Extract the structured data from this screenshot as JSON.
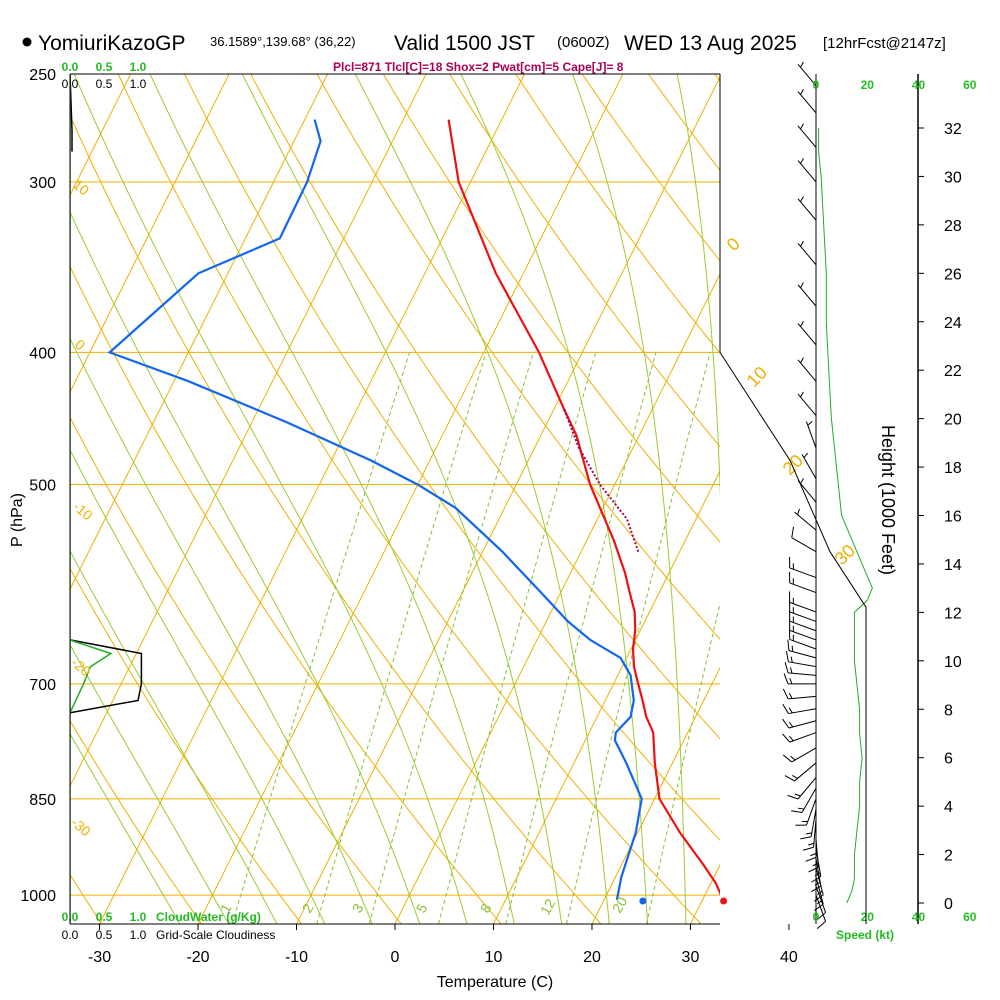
{
  "header": {
    "station": "YomiuriKazoGP",
    "coords": "36.1589°,139.68° (36,22)",
    "valid_label": "Valid 1500 JST",
    "utc": "(0600Z)",
    "date": "WED 13 Aug 2025",
    "forecast": "[12hrFcst@2147z]"
  },
  "stats_line": "Plcl=871 Tlcl[C]=18 Shox=2 Pwat[cm]=5 Cape[J]= 8",
  "axes": {
    "x_label": "Temperature (C)",
    "y_label": "P (hPa)",
    "right_label": "Height (1000 Feet)",
    "speed_label": "Speed (kt)",
    "cloudwater_label": "CloudWater (g/Kg)",
    "cloudiness_label": "Grid-Scale Cloudiness"
  },
  "colors": {
    "isotherm": "#f0b000",
    "dry_adiabat": "#f0b000",
    "moist_adiabat": "#99cc33",
    "mixing_ratio": "#88c030",
    "temperature": "#ee1111",
    "dewpoint": "#1166ee",
    "parcel": "#aa0055",
    "cloud": "#22aa22",
    "label_green": "#22bb22",
    "stats": "#aa0055"
  },
  "chart_data": {
    "type": "skew-t",
    "pressure_levels": [
      "250",
      "300",
      "400",
      "500",
      "700",
      "850",
      "1000"
    ],
    "temp_ticks": [
      "-30",
      "-20",
      "-10",
      "0",
      "10",
      "20",
      "30",
      "40"
    ],
    "xlim": [
      -33,
      33
    ],
    "pressure_range": [
      250,
      1050
    ],
    "temperature_profile": {
      "name": "Temperature",
      "pressure": [
        1010,
        980,
        950,
        900,
        850,
        800,
        760,
        740,
        720,
        700,
        680,
        660,
        640,
        620,
        600,
        580,
        550,
        500,
        460,
        440,
        400,
        350,
        300,
        270
      ],
      "temp": [
        32.2,
        30.5,
        28.3,
        24.3,
        20.5,
        18.2,
        16.5,
        15.0,
        13.8,
        12.5,
        11.2,
        10.2,
        9.5,
        8.5,
        7.0,
        5.5,
        2.8,
        -2.5,
        -6.4,
        -9.0,
        -14.4,
        -22.8,
        -31.2,
        -35.4
      ]
    },
    "dewpoint_profile": {
      "name": "Dew point",
      "pressure": [
        1008,
        970,
        900,
        850,
        800,
        770,
        760,
        740,
        720,
        690,
        670,
        650,
        630,
        600,
        560,
        520,
        500,
        480,
        450,
        420,
        400,
        350,
        330,
        300,
        280,
        270
      ],
      "dewpoint": [
        21.3,
        20.6,
        19.8,
        18.7,
        15.3,
        13.0,
        12.7,
        13.4,
        12.9,
        11.3,
        9.4,
        5.4,
        2.2,
        -2.0,
        -8.0,
        -15.0,
        -20.0,
        -26.0,
        -36.5,
        -48.5,
        -58.0,
        -53.0,
        -46.5,
        -46.6,
        -47.3,
        -49.0
      ]
    },
    "surface_temp": {
      "pressure": 1010,
      "temp": 32.2
    },
    "surface_dewpoint": {
      "pressure": 1010,
      "dewpoint": 24.0
    },
    "parcel_profile": {
      "name": "Parcel",
      "pressure": [
        560,
        530,
        500,
        470,
        440
      ],
      "temp": [
        5.3,
        2.5,
        -2.0,
        -6.0,
        -9.5
      ]
    },
    "dry_adiabat_thetas_K": [
      230,
      240,
      250,
      260,
      270,
      280,
      290,
      300,
      310,
      320,
      330,
      340,
      350,
      360,
      370,
      380,
      390,
      400,
      410,
      420,
      430,
      440
    ],
    "moist_adiabat_labels": [
      "0",
      "10",
      "20",
      "30"
    ],
    "moist_adiabat_thetaw": [
      -25,
      -20,
      -15,
      -10,
      -5,
      0,
      5,
      10,
      15,
      20,
      24,
      28,
      32
    ],
    "mixing_ratio_labels": [
      "1",
      "2",
      "3",
      "5",
      "8",
      "12",
      "20"
    ],
    "isotherm_labels": [
      "-10",
      "-20",
      "-30",
      "10",
      "0",
      "-10"
    ],
    "speed_ticks": [
      "0",
      "20",
      "40",
      "60"
    ],
    "height_ticks": [
      "0",
      "2",
      "4",
      "6",
      "8",
      "10",
      "12",
      "14",
      "16",
      "18",
      "20",
      "22",
      "24",
      "26",
      "28",
      "30",
      "32"
    ],
    "cloudwater_ticks": [
      "0.0",
      "0.5",
      "1.0"
    ],
    "cloudiness_ticks": [
      "0.0",
      "0.5",
      "1.0"
    ],
    "wind_speed_profile": {
      "height_kft": [
        0,
        0.5,
        1,
        2,
        3,
        4,
        5,
        6,
        7,
        8,
        9,
        10,
        11,
        12,
        12.5,
        13,
        14,
        16,
        18,
        20,
        22,
        24,
        26,
        28,
        30,
        31,
        32
      ],
      "speed_kt": [
        12,
        14,
        15,
        15,
        16,
        17,
        17,
        18,
        17,
        17,
        16,
        15,
        15,
        15,
        20,
        22,
        18,
        10,
        8,
        6,
        5,
        4,
        4,
        3,
        2,
        1,
        1
      ]
    },
    "cloudiness_profile": {
      "pressure": [
        650,
        665,
        680,
        700,
        720,
        735
      ],
      "value": [
        0,
        1.05,
        1.05,
        1.05,
        1.0,
        0
      ]
    },
    "cloudwater_profile": {
      "pressure": [
        650,
        665,
        680,
        700,
        735
      ],
      "value": [
        0,
        0.6,
        0.3,
        0.2,
        0
      ]
    },
    "cloudiness_upper": {
      "pressure": [
        250,
        275,
        285
      ],
      "value": [
        0,
        0.03,
        0.03
      ]
    },
    "wind_barbs": [
      {
        "pressure": 1000,
        "dir": 160,
        "speed": 12
      },
      {
        "pressure": 985,
        "dir": 160,
        "speed": 14
      },
      {
        "pressure": 970,
        "dir": 165,
        "speed": 15
      },
      {
        "pressure": 955,
        "dir": 165,
        "speed": 15
      },
      {
        "pressure": 940,
        "dir": 170,
        "speed": 15
      },
      {
        "pressure": 925,
        "dir": 170,
        "speed": 15
      },
      {
        "pressure": 910,
        "dir": 175,
        "speed": 15
      },
      {
        "pressure": 895,
        "dir": 180,
        "speed": 15
      },
      {
        "pressure": 880,
        "dir": 185,
        "speed": 15
      },
      {
        "pressure": 865,
        "dir": 190,
        "speed": 15
      },
      {
        "pressure": 850,
        "dir": 200,
        "speed": 15
      },
      {
        "pressure": 835,
        "dir": 210,
        "speed": 15
      },
      {
        "pressure": 820,
        "dir": 220,
        "speed": 15
      },
      {
        "pressure": 800,
        "dir": 230,
        "speed": 15
      },
      {
        "pressure": 780,
        "dir": 240,
        "speed": 15
      },
      {
        "pressure": 760,
        "dir": 250,
        "speed": 15
      },
      {
        "pressure": 745,
        "dir": 255,
        "speed": 15
      },
      {
        "pressure": 730,
        "dir": 260,
        "speed": 15
      },
      {
        "pressure": 715,
        "dir": 265,
        "speed": 15
      },
      {
        "pressure": 700,
        "dir": 270,
        "speed": 15
      },
      {
        "pressure": 690,
        "dir": 275,
        "speed": 15
      },
      {
        "pressure": 680,
        "dir": 280,
        "speed": 15
      },
      {
        "pressure": 670,
        "dir": 285,
        "speed": 15
      },
      {
        "pressure": 660,
        "dir": 290,
        "speed": 15
      },
      {
        "pressure": 650,
        "dir": 290,
        "speed": 15
      },
      {
        "pressure": 640,
        "dir": 290,
        "speed": 15
      },
      {
        "pressure": 630,
        "dir": 290,
        "speed": 15
      },
      {
        "pressure": 620,
        "dir": 290,
        "speed": 15
      },
      {
        "pressure": 600,
        "dir": 290,
        "speed": 15
      },
      {
        "pressure": 585,
        "dir": 290,
        "speed": 15
      },
      {
        "pressure": 560,
        "dir": 300,
        "speed": 10
      },
      {
        "pressure": 540,
        "dir": 310,
        "speed": 5
      },
      {
        "pressure": 515,
        "dir": 320,
        "speed": 5
      },
      {
        "pressure": 495,
        "dir": 330,
        "speed": 5
      },
      {
        "pressure": 470,
        "dir": 340,
        "speed": 5
      },
      {
        "pressure": 445,
        "dir": 320,
        "speed": 5
      },
      {
        "pressure": 420,
        "dir": 320,
        "speed": 5
      },
      {
        "pressure": 395,
        "dir": 320,
        "speed": 5
      },
      {
        "pressure": 370,
        "dir": 320,
        "speed": 5
      },
      {
        "pressure": 345,
        "dir": 320,
        "speed": 5
      },
      {
        "pressure": 320,
        "dir": 320,
        "speed": 5
      },
      {
        "pressure": 300,
        "dir": 320,
        "speed": 5
      },
      {
        "pressure": 283,
        "dir": 320,
        "speed": 5
      },
      {
        "pressure": 267,
        "dir": 320,
        "speed": 5
      },
      {
        "pressure": 255,
        "dir": 320,
        "speed": 5
      }
    ]
  }
}
